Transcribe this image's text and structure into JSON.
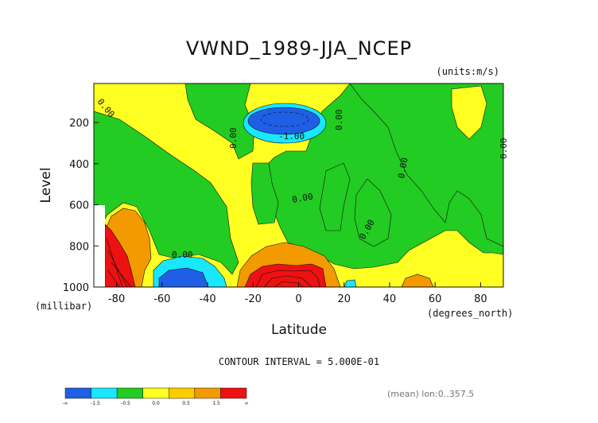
{
  "chart_data": {
    "type": "contour",
    "title": "VWND_1989-JJA_NCEP",
    "units_label": "(units:m/s)",
    "xlabel": "Latitude",
    "ylabel": "Level",
    "x_units_label": "(degrees_north)",
    "y_units_label": "(millibar)",
    "xlim": [
      -90,
      90
    ],
    "ylim": [
      1000,
      10
    ],
    "x_ticks": [
      -80,
      -60,
      -40,
      -20,
      0,
      20,
      40,
      60,
      80
    ],
    "y_ticks": [
      200,
      400,
      600,
      800,
      1000
    ],
    "contour_interval_text": "CONTOUR INTERVAL = 5.000E-01",
    "mean_text": "(mean) lon:0..357.5",
    "contour_labels": [
      "0.00",
      "0.00",
      "-1.00",
      "0.00",
      "0.00",
      "0.00",
      "0.00",
      "0.00",
      "0.00",
      "0.00"
    ],
    "colorbar": {
      "labels": [
        "-∞",
        "-1.5",
        "-0.5",
        "0.0",
        "0.5",
        "1.5",
        "∞"
      ],
      "colors": [
        "#1f5fe6",
        "#19e6ff",
        "#22cc22",
        "#ffff22",
        "#ffcc00",
        "#f29a00",
        "#ee1111"
      ]
    },
    "palette": {
      "blue": "#1f5fe6",
      "cyan": "#19e6ff",
      "green": "#22cc22",
      "yellow": "#ffff22",
      "orange": "#f29a00",
      "red": "#ee1111"
    },
    "grid": false
  }
}
